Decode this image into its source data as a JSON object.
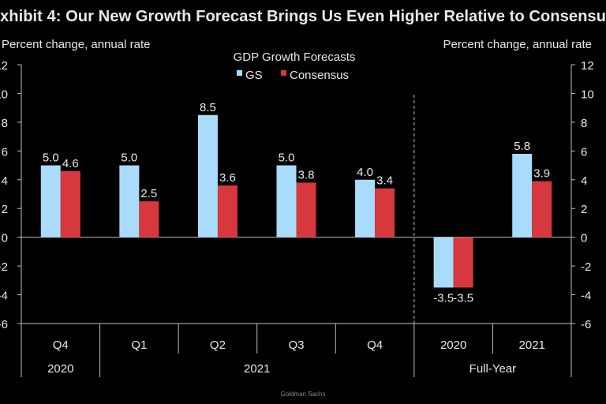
{
  "chart_data": {
    "type": "bar",
    "title": "xhibit 4: Our New Growth Forecast Brings Us Even Higher Relative to Consensu",
    "legend_title": "GDP Growth Forecasts",
    "legend_placement": "top-center",
    "ylabel_left": "Percent change, annual rate",
    "ylabel_right": "Percent change, annual rate",
    "ylim": [
      -6,
      12
    ],
    "yticks": [
      12,
      10,
      8,
      6,
      4,
      2,
      0,
      -2,
      -4,
      -6
    ],
    "categories": [
      "Q4",
      "Q1",
      "Q2",
      "Q3",
      "Q4",
      "2020",
      "2021"
    ],
    "groups": [
      {
        "label": "2020",
        "span": 1
      },
      {
        "label": "2021",
        "span": 4
      },
      {
        "label": "Full-Year",
        "span": 2
      }
    ],
    "series": [
      {
        "name": "GS",
        "color": "#a9dcfb",
        "values": [
          5.0,
          5.0,
          8.5,
          5.0,
          4.0,
          -3.5,
          5.8
        ]
      },
      {
        "name": "Consensus",
        "color": "#d7383e",
        "values": [
          4.6,
          2.5,
          3.6,
          3.8,
          3.4,
          -3.5,
          3.9
        ]
      }
    ],
    "data_labels": true,
    "grid": false,
    "source": "Goldman Sachs"
  }
}
